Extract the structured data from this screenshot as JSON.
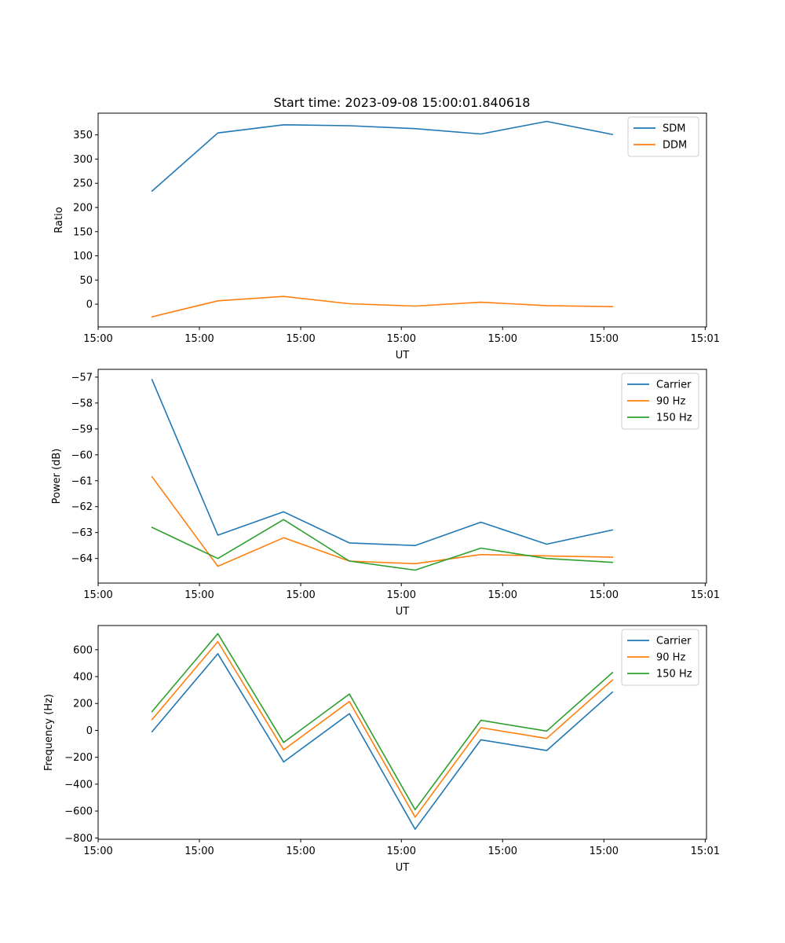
{
  "colors": {
    "blue": "#1f77b4",
    "orange": "#ff7f0e",
    "green": "#2ca02c",
    "axis": "#000000",
    "legend_border": "#cccccc"
  },
  "chart_data": [
    {
      "type": "line",
      "title": "Start time: 2023-09-08 15:00:01.840618",
      "xlabel": "UT",
      "ylabel": "Ratio",
      "x": [
        1,
        2,
        3,
        4,
        5,
        6,
        7,
        8
      ],
      "xlim": [
        0.18,
        9.43
      ],
      "x_ticks": [
        0.18,
        1.72,
        3.26,
        4.79,
        6.33,
        7.87,
        9.41
      ],
      "x_tick_labels": [
        "15:00",
        "15:00",
        "15:00",
        "15:00",
        "15:00",
        "15:00",
        "15:01"
      ],
      "ylim": [
        -47,
        395
      ],
      "y_ticks": [
        0,
        50,
        100,
        150,
        200,
        250,
        300,
        350
      ],
      "y_tick_labels": [
        "0",
        "50",
        "100",
        "150",
        "200",
        "250",
        "300",
        "350"
      ],
      "legend_position": "top-right",
      "series": [
        {
          "name": "SDM",
          "color": "#1f77b4",
          "values": [
            234,
            354,
            371,
            369,
            363,
            352,
            378,
            351
          ]
        },
        {
          "name": "DDM",
          "color": "#ff7f0e",
          "values": [
            -26,
            7,
            16,
            1,
            -4,
            4,
            -3,
            -5
          ]
        }
      ]
    },
    {
      "type": "line",
      "title": "",
      "xlabel": "UT",
      "ylabel": "Power (dB)",
      "x": [
        1,
        2,
        3,
        4,
        5,
        6,
        7,
        8
      ],
      "xlim": [
        0.18,
        9.43
      ],
      "x_ticks": [
        0.18,
        1.72,
        3.26,
        4.79,
        6.33,
        7.87,
        9.41
      ],
      "x_tick_labels": [
        "15:00",
        "15:00",
        "15:00",
        "15:00",
        "15:00",
        "15:00",
        "15:01"
      ],
      "ylim": [
        -64.95,
        -56.7
      ],
      "y_ticks": [
        -64,
        -63,
        -62,
        -61,
        -60,
        -59,
        -58,
        -57
      ],
      "y_tick_labels": [
        "−64",
        "−63",
        "−62",
        "−61",
        "−60",
        "−59",
        "−58",
        "−57"
      ],
      "legend_position": "top-right",
      "series": [
        {
          "name": "Carrier",
          "color": "#1f77b4",
          "values": [
            -57.1,
            -63.1,
            -62.2,
            -63.4,
            -63.5,
            -62.6,
            -63.45,
            -62.9
          ]
        },
        {
          "name": "90 Hz",
          "color": "#ff7f0e",
          "values": [
            -60.85,
            -64.3,
            -63.2,
            -64.1,
            -64.2,
            -63.85,
            -63.9,
            -63.95
          ]
        },
        {
          "name": "150 Hz",
          "color": "#2ca02c",
          "values": [
            -62.8,
            -64.0,
            -62.5,
            -64.1,
            -64.45,
            -63.6,
            -64.0,
            -64.15
          ]
        }
      ]
    },
    {
      "type": "line",
      "title": "",
      "xlabel": "UT",
      "ylabel": "Frequency (Hz)",
      "x": [
        1,
        2,
        3,
        4,
        5,
        6,
        7,
        8
      ],
      "xlim": [
        0.18,
        9.43
      ],
      "x_ticks": [
        0.18,
        1.72,
        3.26,
        4.79,
        6.33,
        7.87,
        9.41
      ],
      "x_tick_labels": [
        "15:00",
        "15:00",
        "15:00",
        "15:00",
        "15:00",
        "15:00",
        "15:01"
      ],
      "ylim": [
        -810,
        780
      ],
      "y_ticks": [
        -800,
        -600,
        -400,
        -200,
        0,
        200,
        400,
        600
      ],
      "y_tick_labels": [
        "−800",
        "−600",
        "−400",
        "−200",
        "0",
        "200",
        "400",
        "600"
      ],
      "legend_position": "top-right",
      "series": [
        {
          "name": "Carrier",
          "color": "#1f77b4",
          "values": [
            -10,
            570,
            -235,
            125,
            -735,
            -70,
            -150,
            285
          ]
        },
        {
          "name": "90 Hz",
          "color": "#ff7f0e",
          "values": [
            80,
            660,
            -145,
            215,
            -645,
            20,
            -60,
            375
          ]
        },
        {
          "name": "150 Hz",
          "color": "#2ca02c",
          "values": [
            140,
            720,
            -90,
            270,
            -590,
            75,
            -5,
            430
          ]
        }
      ]
    }
  ]
}
